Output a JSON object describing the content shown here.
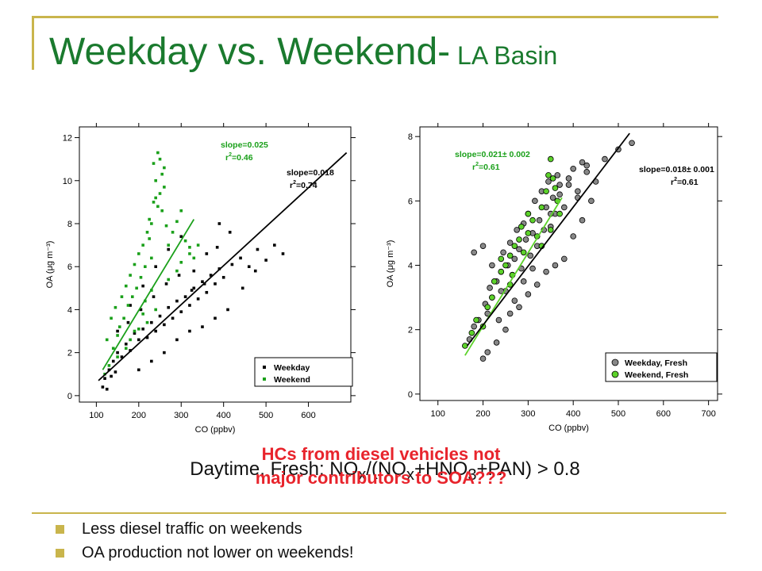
{
  "title": {
    "main": "Weekday vs. Weekend-",
    "sub": " LA Basin"
  },
  "chart_data": [
    {
      "type": "scatter",
      "xlabel": "CO (ppbv)",
      "ylabel": "OA (μg m⁻³)",
      "xlim": [
        60,
        700
      ],
      "ylim": [
        -0.3,
        12.5
      ],
      "xticks": [
        "100",
        "200",
        "300",
        "400",
        "500",
        "600"
      ],
      "yticks": [
        "0",
        "2",
        "4",
        "6",
        "8",
        "10",
        "12"
      ],
      "legend": {
        "placement": "bottom-right",
        "entries": [
          "Weekday",
          "Weekend"
        ]
      },
      "colors": {
        "Weekday": "#000000",
        "Weekend": "#1aa01a"
      },
      "series": [
        {
          "name": "Weekday",
          "style": "square",
          "x": [
            115,
            120,
            125,
            130,
            135,
            140,
            145,
            150,
            160,
            170,
            180,
            190,
            200,
            210,
            220,
            230,
            240,
            250,
            260,
            270,
            280,
            290,
            300,
            310,
            320,
            330,
            340,
            350,
            360,
            370,
            380,
            390,
            400,
            420,
            440,
            460,
            480,
            500,
            520,
            540,
            150,
            180,
            210,
            240,
            270,
            300,
            330,
            360,
            390,
            200,
            230,
            260,
            290,
            320,
            350,
            380,
            410,
            175,
            205,
            235,
            265,
            295,
            325,
            355,
            385,
            415,
            445,
            475
          ],
          "y": [
            0.4,
            0.8,
            0.3,
            1.2,
            0.9,
            1.6,
            1.1,
            2.0,
            1.8,
            2.4,
            2.1,
            2.9,
            2.6,
            3.1,
            2.7,
            3.4,
            3.0,
            3.7,
            3.3,
            4.1,
            3.6,
            4.4,
            3.9,
            4.6,
            4.2,
            5.0,
            4.5,
            5.3,
            4.8,
            5.6,
            5.2,
            5.9,
            5.5,
            6.1,
            6.4,
            6.0,
            6.8,
            6.3,
            7.0,
            6.6,
            3.0,
            4.2,
            5.1,
            6.0,
            6.8,
            7.4,
            5.8,
            6.6,
            8.0,
            1.2,
            1.6,
            2.0,
            2.6,
            3.0,
            3.2,
            3.6,
            4.0,
            3.4,
            4.0,
            4.6,
            5.2,
            5.6,
            4.9,
            5.2,
            6.9,
            7.6,
            5.0,
            5.8
          ]
        },
        {
          "name": "Weekend",
          "style": "square",
          "x": [
            120,
            125,
            130,
            135,
            140,
            145,
            150,
            155,
            160,
            165,
            170,
            175,
            180,
            185,
            190,
            195,
            200,
            205,
            210,
            215,
            220,
            225,
            230,
            235,
            240,
            245,
            250,
            255,
            260,
            265,
            270,
            280,
            290,
            300,
            310,
            320,
            330,
            340,
            250,
            255,
            260,
            240,
            245,
            235,
            230,
            225,
            150,
            170,
            190,
            210,
            215,
            230,
            270,
            290,
            300,
            320,
            180,
            200,
            220,
            240
          ],
          "y": [
            1.0,
            2.6,
            1.4,
            3.6,
            2.2,
            4.1,
            2.8,
            3.2,
            4.6,
            3.6,
            5.1,
            4.2,
            5.6,
            4.6,
            6.1,
            5.0,
            6.6,
            5.5,
            7.0,
            6.0,
            7.6,
            8.2,
            6.4,
            9.0,
            10.0,
            11.3,
            9.4,
            8.6,
            10.6,
            7.9,
            7.0,
            7.6,
            8.1,
            8.6,
            7.2,
            6.9,
            6.4,
            7.0,
            11.0,
            10.3,
            9.7,
            9.2,
            8.8,
            10.8,
            8.0,
            7.3,
            1.8,
            2.2,
            3.0,
            3.8,
            4.4,
            4.9,
            5.4,
            5.8,
            6.2,
            6.6,
            2.6,
            3.1,
            3.4,
            4.0
          ]
        }
      ],
      "fits": [
        {
          "series": "Weekend",
          "slope": "slope=0.025",
          "r2": "=0.46",
          "x": [
            115,
            330
          ],
          "y": [
            1.2,
            8.2
          ]
        },
        {
          "series": "Weekday",
          "slope": "slope=0.018",
          "r2": "=0.74",
          "x": [
            105,
            690
          ],
          "y": [
            0.7,
            11.3
          ]
        }
      ]
    },
    {
      "type": "scatter",
      "xlabel": "CO (ppbv)",
      "ylabel": "OA (μg m⁻³)",
      "xlim": [
        60,
        720
      ],
      "ylim": [
        -0.2,
        8.3
      ],
      "xticks": [
        "100",
        "200",
        "300",
        "400",
        "500",
        "600",
        "700"
      ],
      "yticks": [
        "0",
        "2",
        "4",
        "6",
        "8"
      ],
      "legend": {
        "placement": "bottom-right",
        "entries": [
          "Weekday, Fresh",
          "Weekend, Fresh"
        ]
      },
      "colors": {
        "Weekday, Fresh": "#888888",
        "Weekend, Fresh": "#5cd22a"
      },
      "series": [
        {
          "name": "Weekday, Fresh",
          "style": "circle",
          "x": [
            170,
            180,
            190,
            200,
            205,
            210,
            215,
            220,
            230,
            235,
            240,
            245,
            250,
            255,
            260,
            265,
            270,
            275,
            280,
            285,
            290,
            295,
            300,
            305,
            310,
            315,
            320,
            325,
            330,
            335,
            340,
            345,
            350,
            355,
            360,
            365,
            370,
            380,
            390,
            400,
            410,
            420,
            430,
            450,
            470,
            500,
            530,
            180,
            200,
            220,
            240,
            260,
            280,
            300,
            320,
            340,
            360,
            380,
            400,
            420,
            440,
            210,
            230,
            250,
            270,
            290,
            310,
            330,
            350,
            370,
            390,
            410,
            430
          ],
          "y": [
            1.7,
            2.1,
            2.3,
            1.1,
            2.8,
            2.5,
            3.3,
            3.0,
            3.5,
            2.3,
            3.8,
            4.4,
            3.2,
            4.0,
            4.7,
            3.7,
            4.2,
            5.1,
            4.5,
            3.9,
            5.3,
            4.8,
            5.6,
            4.3,
            5.0,
            6.0,
            4.6,
            5.4,
            6.3,
            5.1,
            5.8,
            6.6,
            5.2,
            6.1,
            5.6,
            6.8,
            6.2,
            5.8,
            6.5,
            7.0,
            6.3,
            7.2,
            6.9,
            6.6,
            7.3,
            7.6,
            7.8,
            4.4,
            4.6,
            4.0,
            3.2,
            2.5,
            2.7,
            3.1,
            3.4,
            3.8,
            4.0,
            4.2,
            4.9,
            5.4,
            6.0,
            1.3,
            1.6,
            2.0,
            2.9,
            3.5,
            3.9,
            4.6,
            5.6,
            6.5,
            6.7,
            6.1,
            7.1
          ]
        },
        {
          "name": "Weekend, Fresh",
          "style": "circle",
          "x": [
            160,
            175,
            185,
            200,
            210,
            220,
            225,
            240,
            250,
            260,
            265,
            270,
            280,
            285,
            290,
            300,
            310,
            320,
            330,
            340,
            345,
            350,
            355,
            360,
            365,
            370,
            240,
            260,
            300,
            330,
            350
          ],
          "y": [
            1.5,
            1.9,
            2.3,
            2.1,
            2.7,
            3.0,
            3.5,
            3.8,
            4.0,
            4.3,
            3.7,
            4.6,
            4.8,
            5.2,
            4.4,
            5.0,
            5.4,
            4.9,
            5.8,
            6.3,
            6.8,
            7.3,
            6.7,
            6.4,
            6.0,
            5.6,
            4.2,
            3.4,
            5.6,
            4.6,
            5.1
          ]
        }
      ],
      "fits": [
        {
          "series": "Weekend, Fresh",
          "slope": "slope=0.021± 0.002",
          "r2": "=0.61",
          "x": [
            160,
            375
          ],
          "y": [
            1.2,
            6.1
          ]
        },
        {
          "series": "Weekday, Fresh",
          "slope": "slope=0.018± 0.001",
          "r2": "=0.61",
          "x": [
            165,
            525
          ],
          "y": [
            1.5,
            8.1
          ]
        }
      ]
    }
  ],
  "caption_red": {
    "line1": "HCs from diesel vehicles not",
    "line2": "major contributors to SOA???"
  },
  "caption_black": {
    "prefix": "Daytime, Fresh: NO",
    "x1": "x",
    "mid": "/(NO",
    "x2": "x",
    "plus1": "+HNO",
    "three": "3",
    "suffix": "+PAN) > 0.8"
  },
  "bullets": [
    "Less diesel traffic on weekends",
    "OA production not lower on weekends!"
  ]
}
